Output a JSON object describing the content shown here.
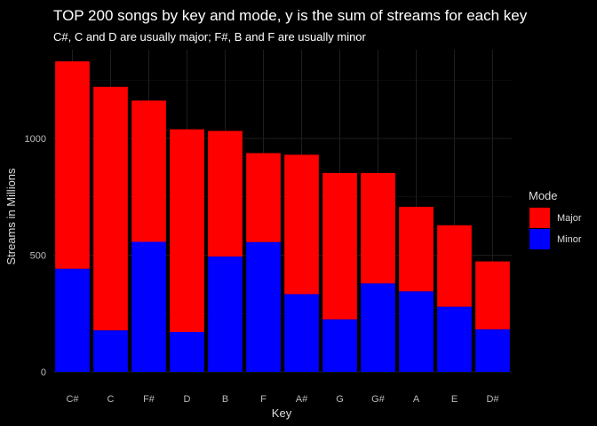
{
  "chart_data": {
    "type": "bar",
    "stacked": true,
    "title": "TOP 200 songs by key and mode, y is the sum of streams for each key",
    "subtitle": "C#, C and D are usually major; F#, B and F are usually minor",
    "xlabel": "Key",
    "ylabel": "Streams in Millions",
    "categories": [
      "C#",
      "C",
      "F#",
      "D",
      "B",
      "F",
      "A#",
      "G",
      "G#",
      "A",
      "E",
      "D#"
    ],
    "series": [
      {
        "name": "Major",
        "color": "#ff0000",
        "values": [
          888,
          1043,
          605,
          868,
          538,
          381,
          597,
          627,
          473,
          362,
          349,
          291
        ]
      },
      {
        "name": "Minor",
        "color": "#0000ff",
        "values": [
          442,
          178,
          557,
          171,
          494,
          556,
          333,
          225,
          379,
          345,
          279,
          182
        ]
      }
    ],
    "ylim": [
      0,
      1380
    ],
    "yticks": [
      0,
      500,
      1000
    ],
    "grid": true,
    "legend": {
      "title": "Mode",
      "position": "right"
    }
  }
}
